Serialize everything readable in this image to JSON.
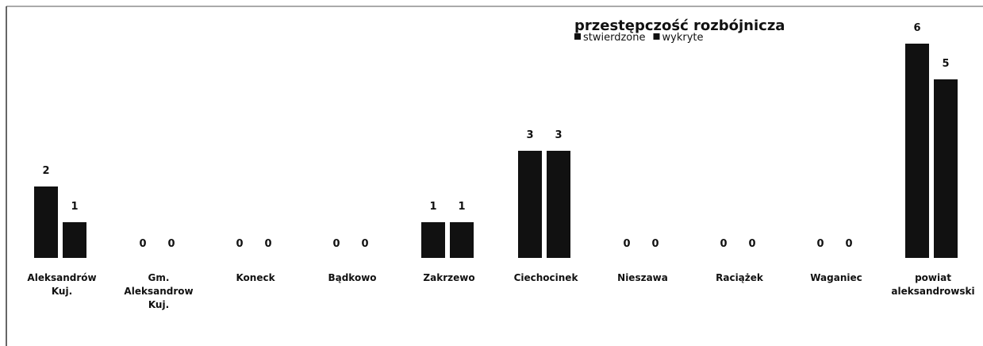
{
  "chart_data": {
    "type": "bar",
    "title": "przestępczość rozbójnicza",
    "categories": [
      "Aleksandrów Kuj.",
      "Gm. Aleksandrow Kuj.",
      "Koneck",
      "Bądkowo",
      "Zakrzewo",
      "Ciechocinek",
      "Nieszawa",
      "Raciążek",
      "Waganiec",
      "powiat aleksandrowski"
    ],
    "series": [
      {
        "name": "stwierdzone",
        "color": "#111111",
        "values": [
          2,
          0,
          0,
          0,
          1,
          3,
          0,
          0,
          0,
          6
        ]
      },
      {
        "name": "wykryte",
        "color": "#111111",
        "values": [
          1,
          0,
          0,
          0,
          1,
          3,
          0,
          0,
          0,
          5
        ]
      }
    ]
  }
}
